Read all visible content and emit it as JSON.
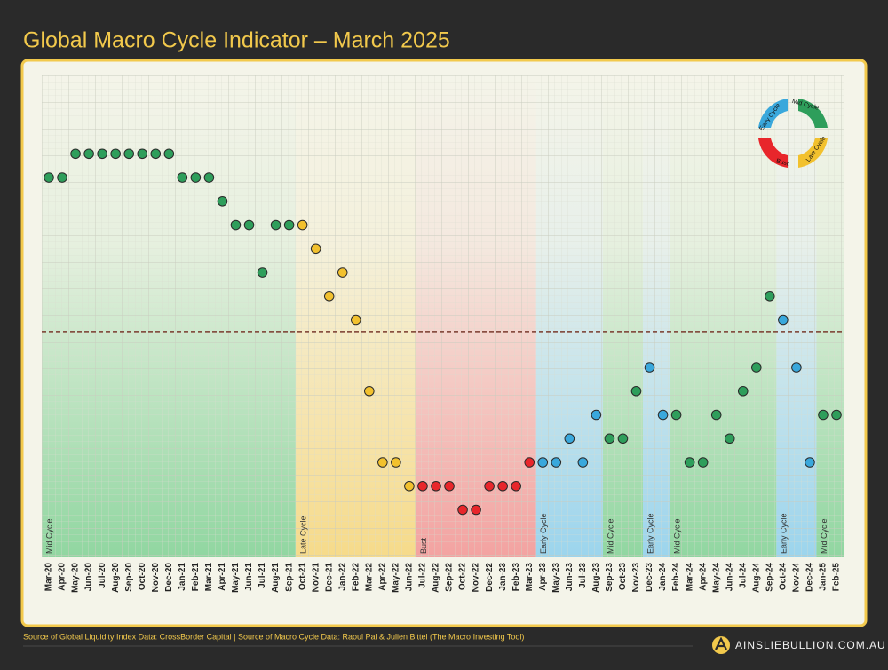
{
  "chart_data": {
    "type": "scatter",
    "title": "Global Macro Cycle Indicator – March 2025",
    "categories": [
      "Mar-20",
      "Apr-20",
      "May-20",
      "Jun-20",
      "Jul-20",
      "Aug-20",
      "Sep-20",
      "Oct-20",
      "Nov-20",
      "Dec-20",
      "Jan-21",
      "Feb-21",
      "Mar-21",
      "Apr-21",
      "May-21",
      "Jun-21",
      "Jul-21",
      "Aug-21",
      "Sep-21",
      "Oct-21",
      "Nov-21",
      "Dec-21",
      "Jan-22",
      "Feb-22",
      "Mar-22",
      "Apr-22",
      "May-22",
      "Jun-22",
      "Jul-22",
      "Aug-22",
      "Sep-22",
      "Oct-22",
      "Nov-22",
      "Dec-22",
      "Jan-23",
      "Feb-23",
      "Mar-23",
      "Apr-23",
      "May-23",
      "Jun-23",
      "Jul-23",
      "Aug-23",
      "Sep-23",
      "Oct-23",
      "Nov-23",
      "Dec-23",
      "Jan-24",
      "Feb-24",
      "Mar-24",
      "Apr-24",
      "May-24",
      "Jun-24",
      "Jul-24",
      "Aug-24",
      "Sep-24",
      "Oct-24",
      "Nov-24",
      "Dec-24",
      "Jan-25",
      "Feb-25"
    ],
    "values": [
      15,
      15,
      16,
      16,
      16,
      16,
      16,
      16,
      16,
      16,
      15,
      15,
      15,
      14,
      13,
      13,
      11,
      13,
      13,
      13,
      12,
      10,
      11,
      9,
      6,
      3,
      3,
      2,
      2,
      2,
      2,
      1,
      1,
      2,
      2,
      2,
      3,
      3,
      3,
      4,
      3,
      5,
      4,
      4,
      6,
      7,
      5,
      5,
      3,
      3,
      5,
      4,
      6,
      7,
      10,
      9,
      7,
      3,
      5,
      5
    ],
    "point_colors": [
      "#2e9e5b",
      "#2e9e5b",
      "#2e9e5b",
      "#2e9e5b",
      "#2e9e5b",
      "#2e9e5b",
      "#2e9e5b",
      "#2e9e5b",
      "#2e9e5b",
      "#2e9e5b",
      "#2e9e5b",
      "#2e9e5b",
      "#2e9e5b",
      "#2e9e5b",
      "#2e9e5b",
      "#2e9e5b",
      "#2e9e5b",
      "#2e9e5b",
      "#2e9e5b",
      "#f2c12e",
      "#f2c12e",
      "#f2c12e",
      "#f2c12e",
      "#f2c12e",
      "#f2c12e",
      "#f2c12e",
      "#f2c12e",
      "#f2c12e",
      "#e8262b",
      "#e8262b",
      "#e8262b",
      "#e8262b",
      "#e8262b",
      "#e8262b",
      "#e8262b",
      "#e8262b",
      "#e8262b",
      "#3aa8dc",
      "#3aa8dc",
      "#3aa8dc",
      "#3aa8dc",
      "#3aa8dc",
      "#2e9e5b",
      "#2e9e5b",
      "#2e9e5b",
      "#3aa8dc",
      "#3aa8dc",
      "#2e9e5b",
      "#2e9e5b",
      "#2e9e5b",
      "#2e9e5b",
      "#2e9e5b",
      "#2e9e5b",
      "#2e9e5b",
      "#2e9e5b",
      "#3aa8dc",
      "#3aa8dc",
      "#3aa8dc",
      "#2e9e5b",
      "#2e9e5b"
    ],
    "ylim": [
      -1,
      19.3
    ],
    "threshold": 8.5,
    "threshold_color": "#7a3b2e",
    "regions": [
      {
        "label": "Mid Cycle",
        "start": "Mar-20",
        "end": "Sep-21",
        "color": "#7fd194"
      },
      {
        "label": "Late Cycle",
        "start": "Oct-21",
        "end": "Jun-22",
        "color": "#f7d679"
      },
      {
        "label": "Bust",
        "start": "Jul-22",
        "end": "Mar-23",
        "color": "#f39494"
      },
      {
        "label": "Early Cycle",
        "start": "Apr-23",
        "end": "Aug-23",
        "color": "#8ccfee"
      },
      {
        "label": "Mid Cycle",
        "start": "Sep-23",
        "end": "Nov-23",
        "color": "#7fd194"
      },
      {
        "label": "Early Cycle",
        "start": "Dec-23",
        "end": "Jan-24",
        "color": "#8ccfee"
      },
      {
        "label": "Mid Cycle",
        "start": "Feb-24",
        "end": "Sep-24",
        "color": "#7fd194"
      },
      {
        "label": "Early Cycle",
        "start": "Oct-24",
        "end": "Dec-24",
        "color": "#8ccfee"
      },
      {
        "label": "Mid Cycle",
        "start": "Jan-25",
        "end": "Feb-25",
        "color": "#7fd194"
      }
    ],
    "cycle_legend": {
      "early": "Early Cycle",
      "mid": "Mid Cycle",
      "late": "Late Cycle",
      "bust": "Bust"
    },
    "source": "Source of Global Liquidity Index Data: CrossBorder Capital | Source of Macro Cycle Data: Raoul Pal & Julien Bittel (The Macro Investing Tool)",
    "brand": "AINSLIEBULLION.COM.AU"
  }
}
